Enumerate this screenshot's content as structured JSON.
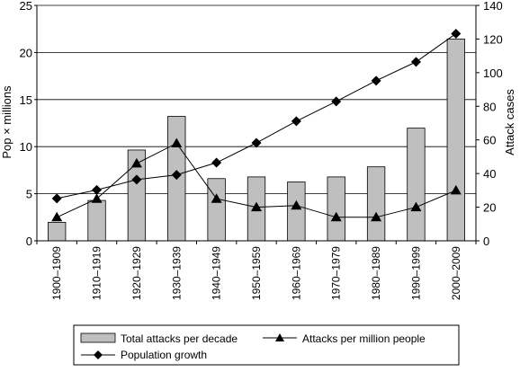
{
  "chart_data": {
    "type": "bar",
    "title": "",
    "xlabel": "",
    "ylabel_left": "Pop × millions",
    "ylabel_right": "Attack cases",
    "ylim_left": [
      0,
      25
    ],
    "ylim_right": [
      0,
      140
    ],
    "yticks_left": [
      0,
      5,
      10,
      15,
      20,
      25
    ],
    "yticks_right": [
      0,
      20,
      40,
      60,
      80,
      100,
      120,
      140
    ],
    "grid": "horizontal",
    "legend_position": "bottom",
    "categories": [
      "1900–1909",
      "1910–1919",
      "1920–1929",
      "1930–1939",
      "1940–1949",
      "1950–1959",
      "1960–1969",
      "1970–1979",
      "1980–1989",
      "1990–1999",
      "2000–2009"
    ],
    "series": [
      {
        "name": "Total attacks per decade",
        "kind": "bar",
        "axis": "right",
        "color": "#bfbfbf",
        "values": [
          11,
          24,
          54,
          74,
          37,
          38,
          35,
          38,
          44,
          67,
          120
        ]
      },
      {
        "name": "Attacks per million people",
        "kind": "line",
        "marker": "triangle",
        "axis": "right",
        "color": "#000000",
        "values": [
          14,
          25,
          46,
          58,
          25,
          20,
          21,
          14,
          14,
          20,
          30
        ]
      },
      {
        "name": "Population growth",
        "kind": "line",
        "marker": "diamond",
        "axis": "left",
        "color": "#000000",
        "values": [
          4.5,
          5.4,
          6.5,
          7.0,
          8.3,
          10.4,
          12.7,
          14.8,
          17.0,
          19.0,
          22.0
        ]
      }
    ]
  }
}
